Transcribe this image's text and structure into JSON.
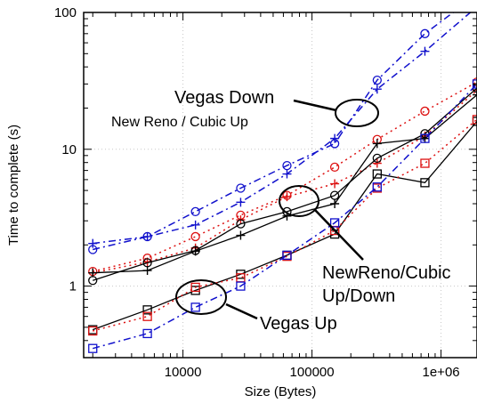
{
  "chart_data": {
    "type": "line",
    "xlabel": "Size (Bytes)",
    "ylabel": "Time to complete (s)",
    "xscale": "log",
    "yscale": "log",
    "xlim": [
      1700,
      1900000
    ],
    "ylim": [
      0.3,
      100
    ],
    "x_ticks": [
      {
        "value": 10000,
        "label": "10000"
      },
      {
        "value": 100000,
        "label": "100000"
      },
      {
        "value": 1000000,
        "label": "1e+06"
      }
    ],
    "y_ticks": [
      {
        "value": 1,
        "label": "1"
      },
      {
        "value": 10,
        "label": "10"
      },
      {
        "value": 100,
        "label": "100"
      }
    ],
    "grid": true,
    "series": [
      {
        "key": "blue_circle",
        "color": "#1010cc",
        "dash": "dashdot",
        "marker": "circle",
        "x": [
          2000,
          5300,
          12500,
          28000,
          64000,
          150000,
          320000,
          750000,
          1900000
        ],
        "y": [
          1.85,
          2.3,
          3.5,
          5.2,
          7.6,
          11.0,
          32,
          70,
          135
        ]
      },
      {
        "key": "blue_plus",
        "color": "#1010cc",
        "dash": "dashdot",
        "marker": "plus",
        "x": [
          2000,
          5300,
          12500,
          28000,
          64000,
          150000,
          320000,
          750000,
          1900000
        ],
        "y": [
          2.05,
          2.3,
          2.8,
          4.1,
          6.6,
          12.0,
          27.5,
          52,
          110
        ]
      },
      {
        "key": "red_circle",
        "color": "#dd1111",
        "dash": "dotted",
        "marker": "circle",
        "x": [
          2000,
          5300,
          12500,
          28000,
          64000,
          150000,
          320000,
          750000,
          1900000
        ],
        "y": [
          1.28,
          1.6,
          2.3,
          3.3,
          4.6,
          7.4,
          11.8,
          19,
          31
        ]
      },
      {
        "key": "red_plus",
        "color": "#dd1111",
        "dash": "dotted",
        "marker": "plus",
        "x": [
          2000,
          5300,
          12500,
          28000,
          64000,
          150000,
          320000,
          750000,
          1900000
        ],
        "y": [
          1.25,
          1.5,
          1.9,
          3.05,
          4.5,
          5.6,
          7.9,
          12.5,
          27
        ]
      },
      {
        "key": "black_circle",
        "color": "#000000",
        "dash": "solid",
        "marker": "circle",
        "x": [
          2000,
          5300,
          12500,
          28000,
          64000,
          150000,
          320000,
          750000,
          1900000
        ],
        "y": [
          1.1,
          1.48,
          1.82,
          2.85,
          3.5,
          4.6,
          8.6,
          13.0,
          28
        ]
      },
      {
        "key": "black_plus",
        "color": "#000000",
        "dash": "solid",
        "marker": "plus",
        "x": [
          2000,
          5300,
          12500,
          28000,
          64000,
          150000,
          320000,
          750000,
          1900000
        ],
        "y": [
          1.25,
          1.3,
          1.8,
          2.35,
          3.25,
          4.0,
          11.0,
          12.0,
          25
        ]
      },
      {
        "key": "black_square",
        "color": "#000000",
        "dash": "solid",
        "marker": "square",
        "x": [
          2000,
          5300,
          12500,
          28000,
          64000,
          150000,
          320000,
          750000,
          1900000
        ],
        "y": [
          0.48,
          0.67,
          0.93,
          1.22,
          1.68,
          2.4,
          6.6,
          5.7,
          16
        ]
      },
      {
        "key": "red_square",
        "color": "#dd1111",
        "dash": "dotted",
        "marker": "square",
        "x": [
          2000,
          5300,
          12500,
          28000,
          64000,
          150000,
          320000,
          750000,
          1900000
        ],
        "y": [
          0.47,
          0.6,
          0.98,
          1.15,
          1.65,
          2.55,
          5.2,
          7.9,
          16.5
        ]
      },
      {
        "key": "blue_square",
        "color": "#1010cc",
        "dash": "dashdot",
        "marker": "square",
        "x": [
          2000,
          5300,
          12500,
          28000,
          64000,
          150000,
          320000,
          750000,
          1900000
        ],
        "y": [
          0.35,
          0.45,
          0.7,
          1.0,
          1.68,
          2.9,
          5.3,
          12.0,
          30
        ]
      }
    ],
    "annotations": [
      {
        "key": "vegas_down",
        "lines": [
          "Vegas Down"
        ],
        "style": "big"
      },
      {
        "key": "newreno_cubic_up",
        "lines": [
          "New Reno / Cubic Up"
        ],
        "style": "small"
      },
      {
        "key": "newreno_cubic_updown",
        "lines": [
          "NewReno/Cubic",
          "Up/Down"
        ],
        "style": "big"
      },
      {
        "key": "vegas_up",
        "lines": [
          "Vegas Up"
        ],
        "style": "big"
      }
    ]
  }
}
